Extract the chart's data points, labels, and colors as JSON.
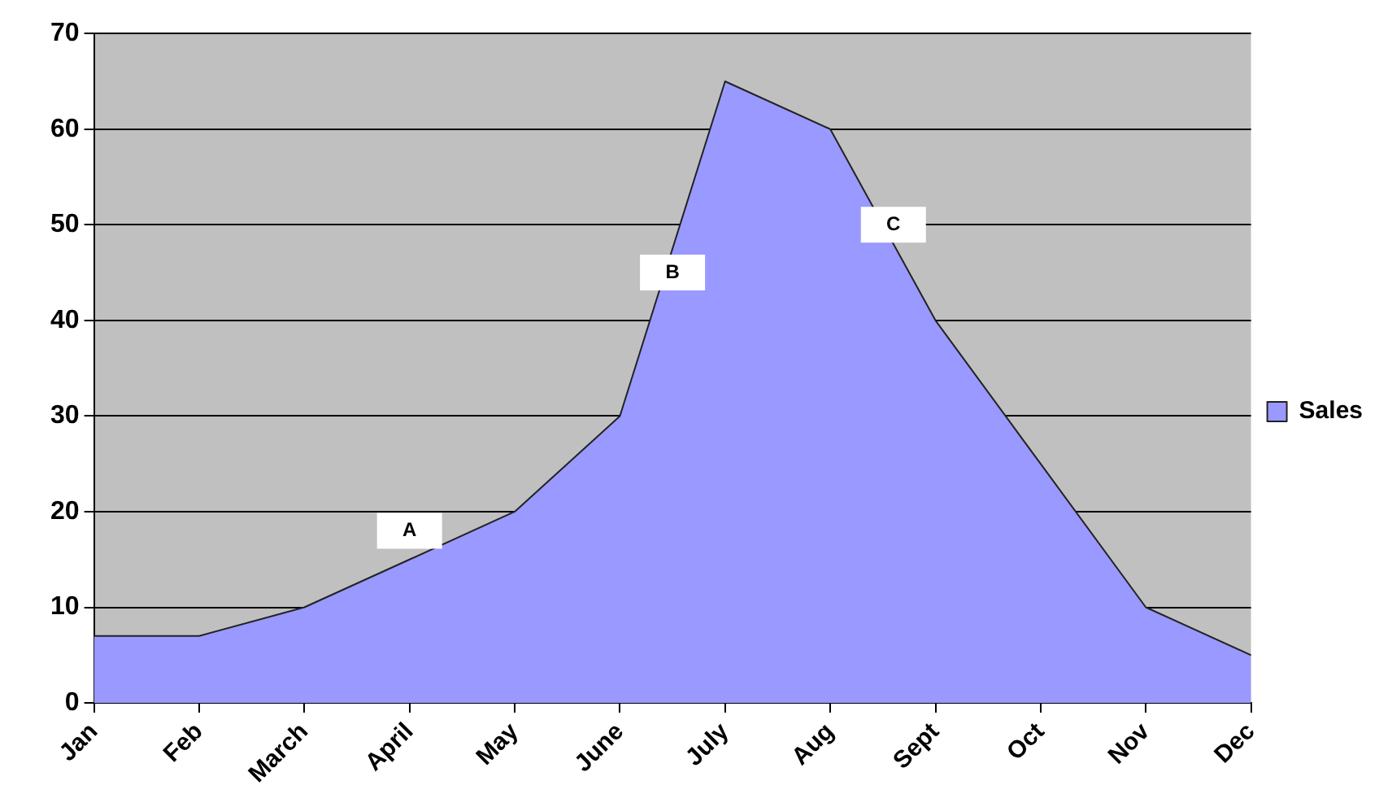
{
  "chart_data": {
    "type": "area",
    "categories": [
      "Jan",
      "Feb",
      "March",
      "April",
      "May",
      "June",
      "July",
      "Aug",
      "Sept",
      "Oct",
      "Nov",
      "Dec"
    ],
    "series": [
      {
        "name": "Sales",
        "color": "#9999ff",
        "values": [
          7,
          7,
          10,
          15,
          20,
          30,
          65,
          60,
          40,
          25,
          10,
          5
        ]
      }
    ],
    "ylim": [
      0,
      70
    ],
    "yticks": [
      0,
      10,
      20,
      30,
      40,
      50,
      60,
      70
    ],
    "grid": "y",
    "legend": "right",
    "annotations": [
      "A",
      "B",
      "C"
    ]
  }
}
